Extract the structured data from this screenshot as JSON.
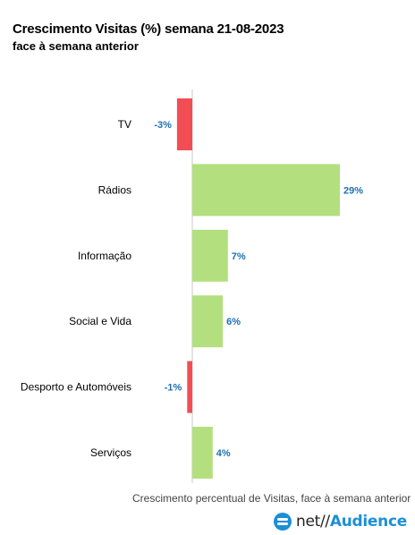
{
  "chart_data": {
    "type": "bar",
    "orientation": "horizontal",
    "title": "Crescimento Visitas (%) semana 21-08-2023",
    "subtitle": "face à semana anterior",
    "categories": [
      "TV",
      "Rádios",
      "Informação",
      "Social e Vida",
      "Desporto e Automóveis",
      "Serviços"
    ],
    "values": [
      -3,
      29,
      7,
      6,
      -1,
      4
    ],
    "value_labels": [
      "-3%",
      "29%",
      "7%",
      "6%",
      "-1%",
      "4%"
    ],
    "xlabel": "Crescimento percentual de Visitas, face à semana anterior",
    "ylabel": "",
    "xlim": [
      -3,
      29
    ],
    "colors": {
      "positive": "#b3df7f",
      "negative": "#f24d52",
      "label": "#1f6fb2",
      "axis": "#c8c8c8"
    },
    "grid": false,
    "legend": "none"
  },
  "logo": {
    "prefix": "net//",
    "name": "Audience",
    "icon": "netaudience-logo-icon"
  }
}
